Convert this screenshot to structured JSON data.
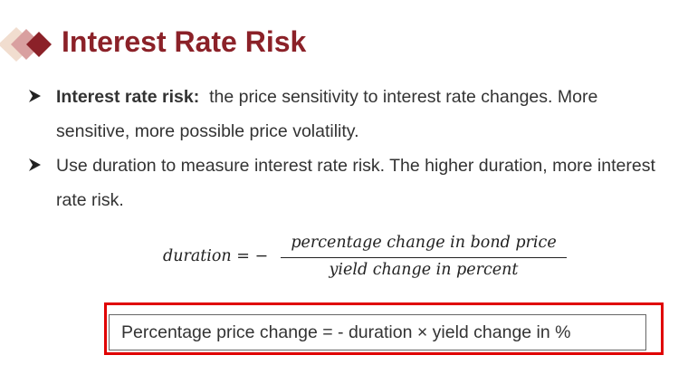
{
  "title": "Interest Rate Risk",
  "colors": {
    "title": "#8b2128",
    "highlight_border": "#e00000",
    "logo_dark": "#8b2128",
    "logo_mid": "#d9a0a0",
    "logo_light": "#f1ddcf"
  },
  "icons": {
    "logo": "stacked-diamonds-icon",
    "bullet": "arrowhead-bullet-icon"
  },
  "bullets": [
    {
      "bold": "Interest rate risk:",
      "text": "the price sensitivity to interest rate changes. More sensitive, more possible price volatility."
    },
    {
      "bold": "",
      "text": "Use duration to measure interest rate risk. The higher duration, more interest rate risk."
    }
  ],
  "formula": {
    "lhs": "duration = −",
    "numerator": "percentage change in bond price",
    "denominator": "yield change in percent"
  },
  "rule": "Percentage price change = - duration × yield change in %"
}
